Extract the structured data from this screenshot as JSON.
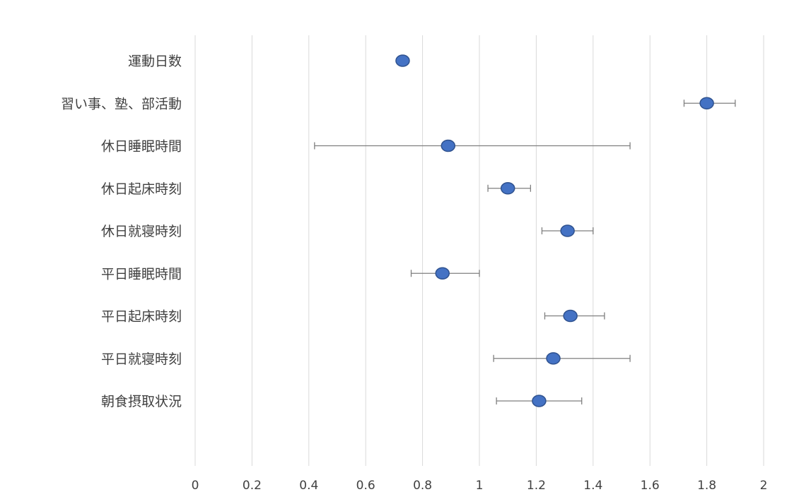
{
  "chart_data": {
    "type": "forest",
    "title": "",
    "xlabel": "",
    "ylabel": "",
    "xlim": [
      0,
      2
    ],
    "x_ticks": [
      0,
      0.2,
      0.4,
      0.6,
      0.8,
      1,
      1.2,
      1.4,
      1.6,
      1.8,
      2
    ],
    "x_tick_labels": [
      "0",
      "0.2",
      "0.4",
      "0.6",
      "0.8",
      "1",
      "1.2",
      "1.4",
      "1.6",
      "1.8",
      "2"
    ],
    "grid": "vertical",
    "legend": "none",
    "point_color": "#4472c4",
    "errorbar_color": "#7f7f7f",
    "rows": [
      {
        "label": "運動日数",
        "value": 0.73,
        "low": null,
        "high": null
      },
      {
        "label": "習い事、塾、部活動",
        "value": 1.8,
        "low": 1.72,
        "high": 1.9
      },
      {
        "label": "休日睡眠時間",
        "value": 0.89,
        "low": 0.42,
        "high": 1.53
      },
      {
        "label": "休日起床時刻",
        "value": 1.1,
        "low": 1.03,
        "high": 1.18
      },
      {
        "label": "休日就寝時刻",
        "value": 1.31,
        "low": 1.22,
        "high": 1.4
      },
      {
        "label": "平日睡眠時間",
        "value": 0.87,
        "low": 0.76,
        "high": 1.0
      },
      {
        "label": "平日起床時刻",
        "value": 1.32,
        "low": 1.23,
        "high": 1.44
      },
      {
        "label": "平日就寝時刻",
        "value": 1.26,
        "low": 1.05,
        "high": 1.53
      },
      {
        "label": "朝食摂取状況",
        "value": 1.21,
        "low": 1.06,
        "high": 1.36
      }
    ]
  }
}
